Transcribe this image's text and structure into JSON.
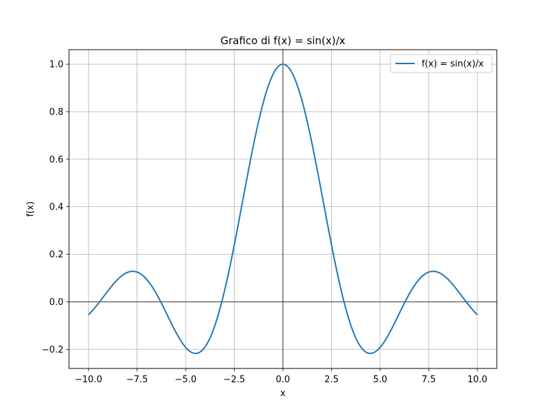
{
  "chart_data": {
    "type": "line",
    "title": "Grafico di f(x) = sin(x)/x",
    "xlabel": "x",
    "ylabel": "f(x)",
    "xlim": [
      -11.0,
      11.0
    ],
    "ylim": [
      -0.2805,
      1.0611
    ],
    "grid": true,
    "legend_position": "top-right",
    "reference_lines": {
      "x": 0,
      "y": 0
    },
    "x_ticks": [
      -10.0,
      -7.5,
      -5.0,
      -2.5,
      0.0,
      2.5,
      5.0,
      7.5,
      10.0
    ],
    "x_tick_labels": [
      "−10.0",
      "−7.5",
      "−5.0",
      "−2.5",
      "0.0",
      "2.5",
      "5.0",
      "7.5",
      "10.0"
    ],
    "y_ticks": [
      -0.2,
      0.0,
      0.2,
      0.4,
      0.6,
      0.8,
      1.0
    ],
    "y_tick_labels": [
      "−0.2",
      "0.0",
      "0.2",
      "0.4",
      "0.6",
      "0.8",
      "1.0"
    ],
    "series": [
      {
        "name": "f(x) = sin(x)/x",
        "color": "#1f77b4",
        "x": [
          -10.0,
          -9.5,
          -9.0,
          -8.5,
          -8.0,
          -7.725,
          -7.5,
          -7.0,
          -6.5,
          -6.0,
          -5.5,
          -5.0,
          -4.493,
          -4.0,
          -3.5,
          -3.0,
          -2.5,
          -2.0,
          -1.5,
          -1.0,
          -0.5,
          0.0,
          0.5,
          1.0,
          1.5,
          2.0,
          2.5,
          3.0,
          3.5,
          4.0,
          4.493,
          5.0,
          5.5,
          6.0,
          6.5,
          7.0,
          7.5,
          7.725,
          8.0,
          8.5,
          9.0,
          9.5,
          10.0
        ],
        "y": [
          -0.0544,
          -0.0789,
          0.0458,
          0.0939,
          0.1237,
          0.1283,
          0.1251,
          0.0939,
          0.033,
          -0.0466,
          -0.1283,
          -0.1918,
          -0.2172,
          -0.1892,
          -0.1002,
          0.047,
          0.2394,
          0.4546,
          0.665,
          0.8415,
          0.9589,
          1.0,
          0.9589,
          0.8415,
          0.665,
          0.4546,
          0.2394,
          0.047,
          -0.1002,
          -0.1892,
          -0.2172,
          -0.1918,
          -0.1283,
          -0.0466,
          0.033,
          0.0939,
          0.1251,
          0.1283,
          0.1237,
          0.0939,
          0.0458,
          -0.0789,
          -0.0544
        ]
      }
    ]
  }
}
